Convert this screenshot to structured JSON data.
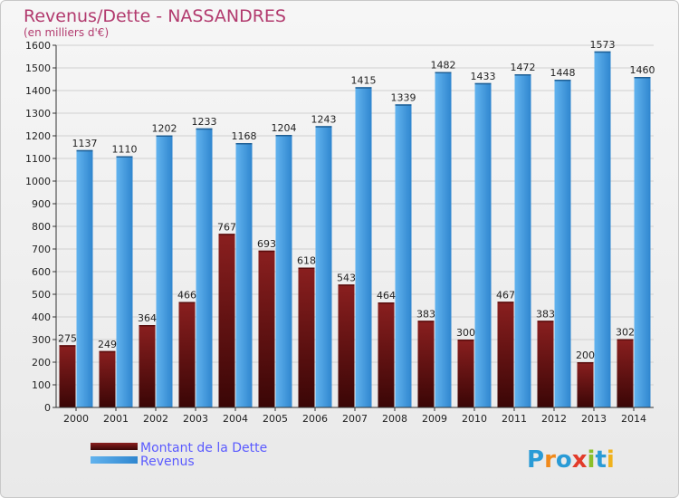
{
  "chart_data": {
    "type": "bar",
    "title": "Revenus/Dette - NASSANDRES",
    "subtitle": "(en milliers d'€)",
    "categories": [
      "2000",
      "2001",
      "2002",
      "2003",
      "2004",
      "2005",
      "2006",
      "2007",
      "2008",
      "2009",
      "2010",
      "2011",
      "2012",
      "2013",
      "2014"
    ],
    "series": [
      {
        "name": "Montant de la Dette",
        "color": "#7a1616",
        "values": [
          275,
          249,
          364,
          466,
          767,
          693,
          618,
          543,
          464,
          383,
          300,
          467,
          383,
          200,
          302
        ]
      },
      {
        "name": "Revenus",
        "color": "#3b93d8",
        "values": [
          1137,
          1110,
          1202,
          1233,
          1168,
          1204,
          1243,
          1415,
          1339,
          1482,
          1433,
          1472,
          1448,
          1573,
          1460
        ]
      }
    ],
    "ylim": [
      0,
      1600
    ],
    "yticks": [
      0,
      100,
      200,
      300,
      400,
      500,
      600,
      700,
      800,
      900,
      1000,
      1100,
      1200,
      1300,
      1400,
      1500,
      1600
    ],
    "grid": true,
    "legend": "bottom-left"
  },
  "logo": {
    "text": "Proxiti"
  }
}
